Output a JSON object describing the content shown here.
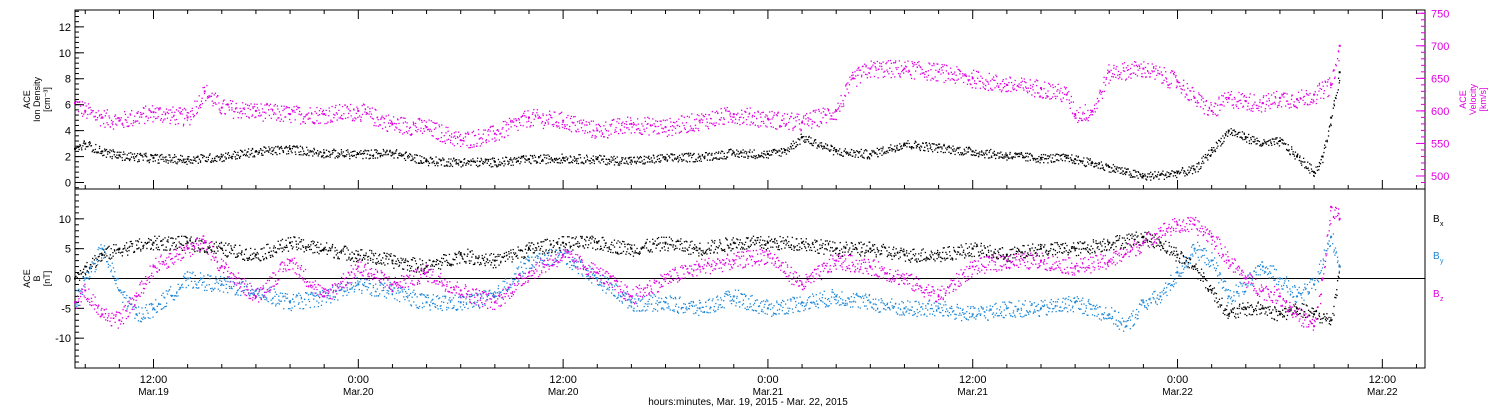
{
  "colors": {
    "black": "#000000",
    "magenta": "#e000e0",
    "blue": "#1e88d8"
  },
  "xlabel": "hours:minutes, Mar. 19, 2015 - Mar. 22, 2015",
  "x_ticks": [
    {
      "hours": 12,
      "time": "12:00",
      "date": "Mar.19"
    },
    {
      "hours": 24,
      "time": "0:00",
      "date": "Mar.20"
    },
    {
      "hours": 36,
      "time": "12:00",
      "date": "Mar.20"
    },
    {
      "hours": 48,
      "time": "0:00",
      "date": "Mar.21"
    },
    {
      "hours": 60,
      "time": "12:00",
      "date": "Mar.21"
    },
    {
      "hours": 72,
      "time": "0:00",
      "date": "Mar.22"
    },
    {
      "hours": 84,
      "time": "12:00",
      "date": "Mar.22"
    }
  ],
  "chart_data": [
    {
      "type": "scatter",
      "panel": "top",
      "xlim": [
        7.4,
        86.5
      ],
      "x_unit": "hours since Mar.19 0:00",
      "left_axis": {
        "label_lines": [
          "ACE",
          "Ion Density",
          "[cm⁻³]"
        ],
        "ylim": [
          -0.5,
          13.3
        ],
        "ticks": [
          0,
          2,
          4,
          6,
          8,
          10,
          12
        ]
      },
      "right_axis": {
        "label_lines": [
          "ACE",
          "Velocity",
          "[km/s]"
        ],
        "ylim": [
          480,
          755
        ],
        "ticks": [
          500,
          550,
          600,
          650,
          700,
          750
        ]
      },
      "series": [
        {
          "name": "Ion Density",
          "axis": "left",
          "color_key": "black",
          "x": [
            7.4,
            8,
            9,
            10,
            12,
            14,
            16,
            18,
            20,
            22,
            24,
            26,
            28,
            30,
            32,
            34,
            36,
            38,
            40,
            42,
            44,
            46,
            48,
            49,
            50,
            52,
            54,
            56,
            58,
            60,
            62,
            64,
            65.5,
            66,
            67,
            68,
            69,
            70,
            71,
            72,
            73,
            74,
            75,
            76,
            77,
            78,
            79,
            80,
            80.5,
            81,
            81.5
          ],
          "y": [
            2.6,
            3.0,
            2.4,
            2.1,
            1.9,
            1.8,
            2.0,
            2.4,
            2.6,
            2.3,
            2.2,
            2.3,
            1.7,
            1.6,
            1.6,
            1.8,
            1.9,
            1.8,
            1.7,
            1.9,
            2.0,
            2.3,
            2.2,
            2.5,
            3.5,
            2.4,
            2.2,
            3.0,
            2.7,
            2.4,
            2.1,
            1.9,
            1.9,
            1.8,
            1.5,
            1.2,
            0.8,
            0.5,
            0.6,
            0.8,
            1.0,
            2.5,
            4.0,
            3.5,
            3.0,
            3.2,
            2.0,
            0.8,
            2.0,
            5.0,
            8.5
          ]
        },
        {
          "name": "Velocity",
          "axis": "right",
          "color_key": "magenta",
          "x": [
            7.4,
            8,
            9,
            10,
            12,
            14,
            15,
            16,
            18,
            20,
            22,
            24,
            26,
            28,
            30,
            32,
            34,
            36,
            38,
            40,
            42,
            44,
            46,
            48,
            50,
            52,
            53,
            54,
            56,
            58,
            60,
            62,
            64,
            65.5,
            66,
            67,
            68,
            70,
            72,
            73,
            74,
            75,
            76,
            77,
            78,
            79,
            80,
            81,
            81.5
          ],
          "y": [
            612,
            600,
            590,
            585,
            598,
            590,
            630,
            605,
            600,
            595,
            595,
            600,
            580,
            575,
            555,
            565,
            590,
            585,
            570,
            580,
            575,
            585,
            595,
            588,
            582,
            600,
            650,
            665,
            665,
            660,
            650,
            640,
            635,
            625,
            595,
            600,
            660,
            665,
            645,
            620,
            600,
            620,
            615,
            612,
            620,
            618,
            625,
            640,
            700
          ]
        }
      ]
    },
    {
      "type": "scatter",
      "panel": "bottom",
      "xlim": [
        7.4,
        86.5
      ],
      "x_unit": "hours since Mar.19 0:00",
      "left_axis": {
        "label_lines": [
          "ACE",
          "B",
          "[nT]"
        ],
        "ylim": [
          -15,
          15
        ],
        "ticks": [
          -10,
          -5,
          0,
          5,
          10
        ]
      },
      "series": [
        {
          "name": "Bx",
          "color_key": "black",
          "x": [
            7.4,
            8,
            9,
            10,
            12,
            14,
            16,
            18,
            20,
            22,
            24,
            26,
            28,
            30,
            32,
            34,
            36,
            38,
            40,
            42,
            44,
            46,
            48,
            50,
            52,
            54,
            56,
            58,
            60,
            62,
            64,
            66,
            68,
            70,
            71,
            72,
            73,
            74,
            75,
            76,
            77,
            78,
            79,
            80,
            81,
            81.5
          ],
          "y": [
            0,
            2,
            4,
            5,
            6,
            6,
            5,
            4,
            6,
            5,
            4,
            3,
            2,
            4,
            3,
            5,
            6,
            6,
            5,
            6,
            5,
            6,
            6,
            6,
            5,
            5,
            4,
            4,
            5,
            4,
            5,
            5,
            6,
            7,
            6,
            4,
            2,
            -2,
            -6,
            -5,
            -5,
            -6,
            -5,
            -6,
            -7,
            2
          ]
        },
        {
          "name": "By",
          "color_key": "blue",
          "x": [
            7.4,
            8,
            9,
            10,
            11,
            12,
            14,
            16,
            18,
            20,
            22,
            24,
            26,
            28,
            30,
            32,
            34,
            36,
            38,
            40,
            42,
            44,
            46,
            48,
            50,
            52,
            54,
            56,
            58,
            60,
            62,
            64,
            66,
            68,
            69,
            70,
            71,
            72,
            73,
            74,
            75,
            76,
            77,
            78,
            79,
            80,
            81,
            81.5
          ],
          "y": [
            -4,
            0,
            5,
            -2,
            -6,
            -5,
            0,
            -1,
            -2,
            -4,
            -3,
            -1,
            -2,
            -4,
            -4,
            -3,
            3,
            4,
            0,
            -4,
            -4,
            -5,
            -3,
            -5,
            -4,
            -3,
            -4,
            -5,
            -5,
            -6,
            -5,
            -5,
            -4,
            -6,
            -8,
            -4,
            -3,
            1,
            5,
            3,
            -3,
            -1,
            2,
            0,
            -3,
            -1,
            7,
            2
          ]
        },
        {
          "name": "Bz",
          "color_key": "magenta",
          "x": [
            7.4,
            8,
            9,
            10,
            11,
            12,
            14,
            15,
            16,
            18,
            20,
            22,
            24,
            26,
            28,
            30,
            32,
            34,
            36,
            38,
            40,
            42,
            44,
            46,
            48,
            50,
            52,
            54,
            56,
            58,
            60,
            62,
            64,
            66,
            68,
            70,
            71,
            72,
            73,
            74,
            75,
            76,
            77,
            78,
            79,
            80,
            80.5,
            81,
            81.5
          ],
          "y": [
            -4,
            -2,
            -6,
            -7,
            -3,
            2,
            5,
            6,
            2,
            -3,
            3,
            -3,
            2,
            -1,
            1,
            -2,
            -4,
            1,
            4,
            1,
            -3,
            0,
            2,
            3,
            4,
            -1,
            3,
            2,
            0,
            -3,
            2,
            3,
            3,
            2,
            3,
            6,
            8,
            9,
            9,
            7,
            3,
            0,
            -2,
            -3,
            -6,
            -8,
            0,
            12,
            10
          ]
        }
      ],
      "legend": [
        {
          "main": "B",
          "sub": "x",
          "color_key": "black"
        },
        {
          "main": "B",
          "sub": "y",
          "color_key": "blue"
        },
        {
          "main": "B",
          "sub": "z",
          "color_key": "magenta"
        }
      ]
    }
  ]
}
